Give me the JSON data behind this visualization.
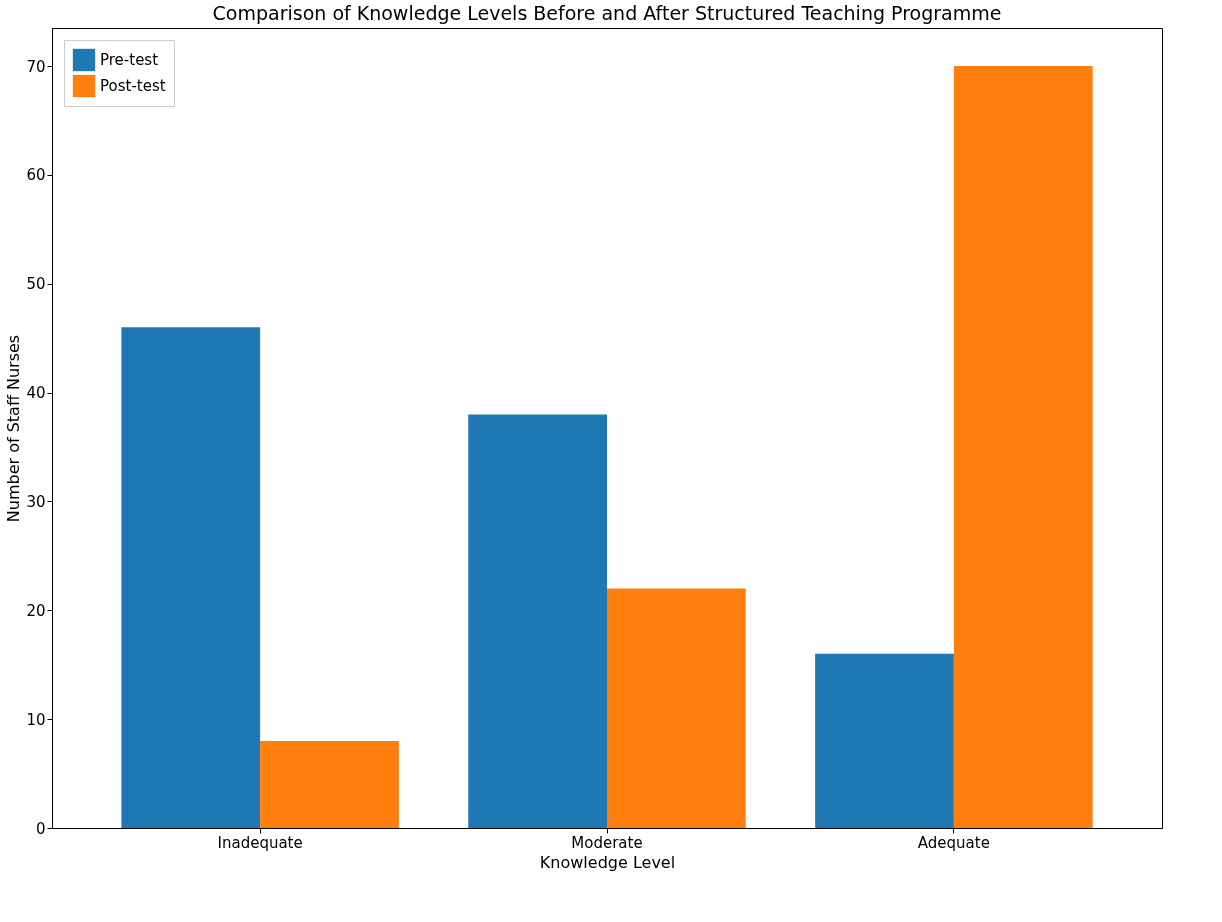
{
  "chart_data": {
    "type": "bar",
    "title": "Comparison of Knowledge Levels Before and After Structured Teaching Programme",
    "xlabel": "Knowledge Level",
    "ylabel": "Number of Staff Nurses",
    "categories": [
      "Inadequate",
      "Moderate",
      "Adequate"
    ],
    "series": [
      {
        "name": "Pre-test",
        "color": "#1f77b4",
        "values": [
          46,
          38,
          16
        ]
      },
      {
        "name": "Post-test",
        "color": "#ff7f0e",
        "values": [
          8,
          22,
          70
        ]
      }
    ],
    "ylim": [
      0,
      73.5
    ],
    "yticks": [
      0,
      10,
      20,
      30,
      40,
      50,
      60,
      70
    ],
    "grid": false,
    "legend": "top left"
  }
}
